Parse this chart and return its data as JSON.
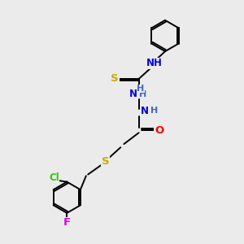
{
  "bg_color": "#ebebeb",
  "bond_color": "#000000",
  "atom_colors": {
    "N": "#0000dd",
    "H": "#4466bb",
    "O": "#ff0000",
    "S": "#ccaa00",
    "Cl": "#33cc00",
    "F": "#dd00dd",
    "C": "#000000"
  },
  "lw": 1.4,
  "dbl_off": 0.09,
  "fs": 8.5
}
